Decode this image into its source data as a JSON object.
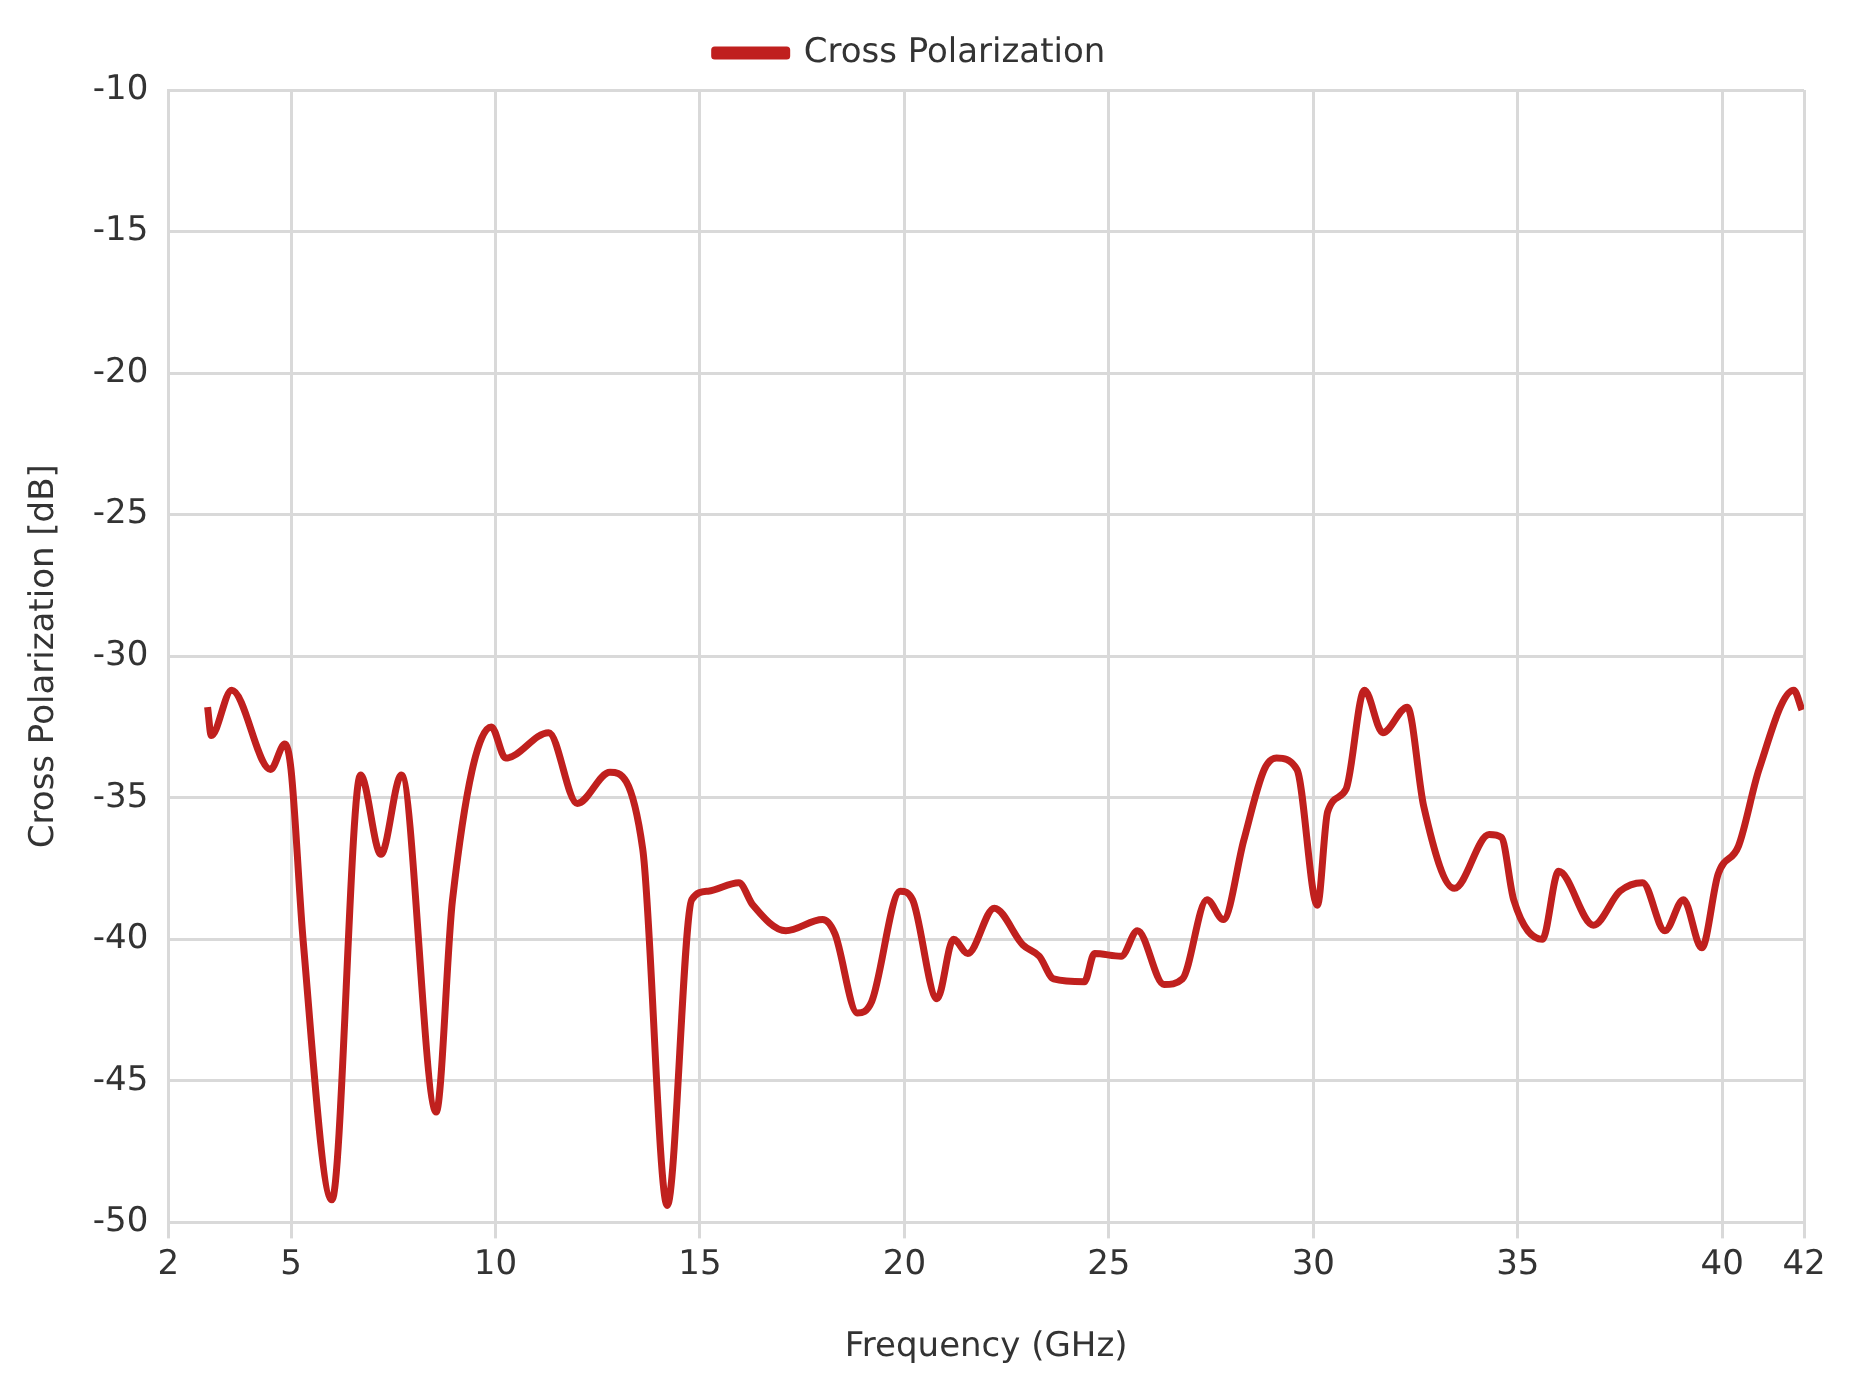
{
  "chart_data": {
    "type": "line",
    "xlabel": "Frequency (GHz)",
    "ylabel": "Cross Polarization [dB]",
    "xlim": [
      2,
      42
    ],
    "xticks": [
      2,
      5,
      10,
      15,
      20,
      25,
      30,
      35,
      40,
      42
    ],
    "ylim": [
      -50,
      -10
    ],
    "yticks": [
      -50,
      -45,
      -40,
      -35,
      -30,
      -25,
      -20,
      -15,
      -10
    ],
    "grid": true,
    "legend": "top",
    "marker": "none",
    "line_style": "solid",
    "series": [
      {
        "name": "Cross Polarization",
        "color": "#c0201e",
        "x": [
          2.96,
          3.05,
          3.55,
          4.5,
          4.85,
          5.0,
          5.3,
          6.0,
          6.7,
          7.2,
          7.7,
          8.55,
          8.95,
          9.9,
          10.25,
          11.3,
          12.0,
          12.8,
          13.6,
          14.2,
          14.8,
          15.2,
          15.95,
          16.3,
          17.1,
          18.0,
          18.3,
          18.85,
          19.2,
          19.9,
          20.2,
          20.8,
          21.2,
          21.55,
          22.2,
          22.9,
          23.3,
          23.65,
          24.4,
          24.65,
          25.3,
          25.7,
          26.35,
          26.8,
          27.4,
          27.8,
          28.3,
          28.8,
          29.1,
          29.6,
          30.1,
          30.35,
          30.8,
          31.25,
          31.7,
          32.3,
          32.7,
          33.45,
          34.3,
          34.6,
          34.9,
          35.6,
          36.0,
          36.85,
          37.5,
          38.05,
          38.6,
          39.05,
          39.5,
          39.9,
          40.4,
          40.9,
          41.75,
          41.95
        ],
        "values": [
          -31.8,
          -32.8,
          -31.2,
          -34.0,
          -33.1,
          -34.0,
          -40.1,
          -49.2,
          -34.2,
          -37.0,
          -34.2,
          -46.1,
          -38.6,
          -32.5,
          -33.6,
          -32.7,
          -35.2,
          -34.1,
          -36.8,
          -49.4,
          -38.6,
          -38.3,
          -38.0,
          -38.8,
          -39.7,
          -39.3,
          -39.8,
          -42.6,
          -42.2,
          -38.3,
          -38.6,
          -42.1,
          -40.0,
          -40.5,
          -38.9,
          -40.2,
          -40.6,
          -41.4,
          -41.5,
          -40.5,
          -40.6,
          -39.7,
          -41.6,
          -41.4,
          -38.6,
          -39.3,
          -36.5,
          -34.0,
          -33.6,
          -34.0,
          -38.8,
          -35.5,
          -34.7,
          -31.2,
          -32.7,
          -31.8,
          -35.3,
          -38.2,
          -36.3,
          -36.4,
          -38.6,
          -40.0,
          -37.6,
          -39.5,
          -38.3,
          -38.0,
          -39.7,
          -38.6,
          -40.3,
          -37.7,
          -36.7,
          -34.0,
          -31.2,
          -31.9
        ]
      }
    ]
  }
}
